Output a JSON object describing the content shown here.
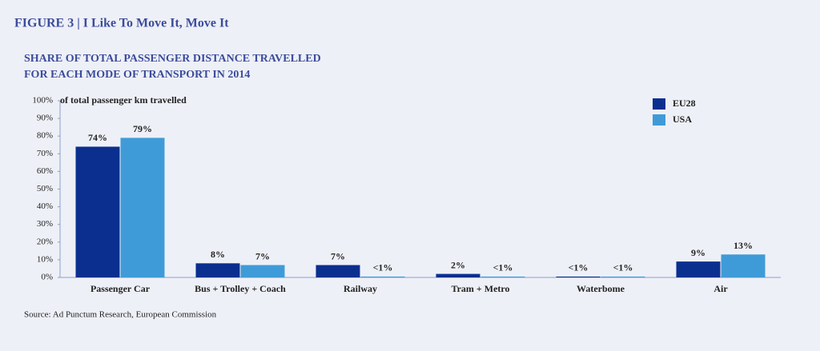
{
  "chart_data": {
    "type": "bar",
    "title": "FIGURE 3 | I Like To Move It, Move It",
    "subtitle": [
      "SHARE OF TOTAL PASSENGER DISTANCE TRAVELLED",
      "FOR EACH MODE OF TRANSPORT IN 2014"
    ],
    "y_label": "of total passenger km travelled",
    "source": "Source: Ad Punctum Research, European Commission",
    "categories": [
      "Passenger Car",
      "Bus + Trolley + Coach",
      "Railway",
      "Tram + Metro",
      "Waterbome",
      "Air"
    ],
    "series": [
      {
        "name": "EU28",
        "color": "#0b2f8f",
        "values": [
          74,
          8,
          7,
          2,
          0.5,
          9
        ],
        "value_labels": [
          "74%",
          "8%",
          "7%",
          "2%",
          "<1%",
          "9%"
        ]
      },
      {
        "name": "USA",
        "color": "#3f9bd8",
        "values": [
          79,
          7,
          0.5,
          0.5,
          0.5,
          13
        ],
        "value_labels": [
          "79%",
          "7%",
          "<1%",
          "<1%",
          "<1%",
          "13%"
        ]
      }
    ],
    "ylim": [
      0,
      100
    ],
    "yticks": [
      {
        "value": 0,
        "label": "0%"
      },
      {
        "value": 10,
        "label": "10%"
      },
      {
        "value": 20,
        "label": "20%"
      },
      {
        "value": 30,
        "label": "30%"
      },
      {
        "value": 40,
        "label": "40%"
      },
      {
        "value": 50,
        "label": "50%"
      },
      {
        "value": 60,
        "label": "60%"
      },
      {
        "value": 70,
        "label": "70%"
      },
      {
        "value": 80,
        "label": "80%"
      },
      {
        "value": 90,
        "label": "90%"
      },
      {
        "value": 100,
        "label": "100%"
      }
    ],
    "legend": "top-right"
  }
}
